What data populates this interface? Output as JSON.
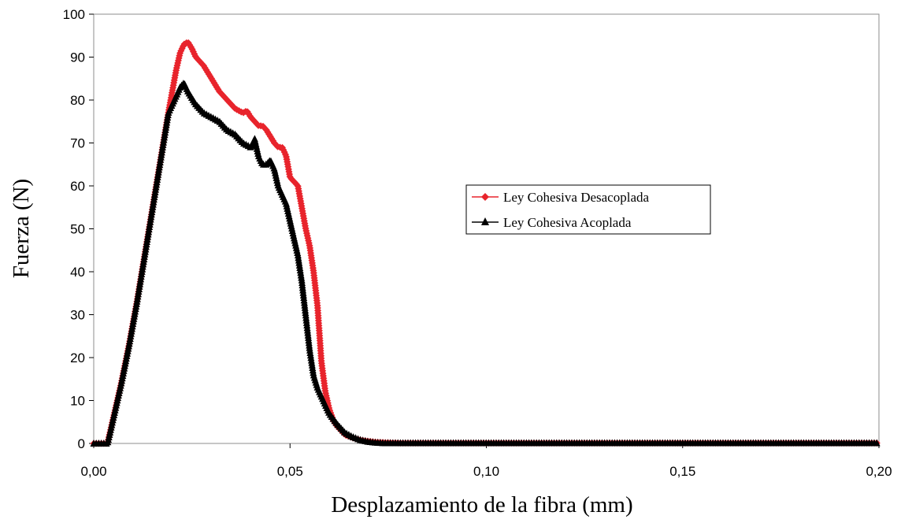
{
  "chart_data": {
    "type": "line",
    "xlabel": "Desplazamiento de la fibra (mm)",
    "ylabel": "Fuerza (N)",
    "xlim": [
      0,
      0.2
    ],
    "ylim": [
      0,
      100
    ],
    "x_ticks": [
      "0,00",
      "0,05",
      "0,10",
      "0,15",
      "0,20"
    ],
    "y_ticks": [
      "0",
      "10",
      "20",
      "30",
      "40",
      "50",
      "60",
      "70",
      "80",
      "90",
      "100"
    ],
    "grid": false,
    "legend_position": "right-center",
    "series": [
      {
        "name": "Ley Cohesiva Desacoplada",
        "color": "#e8242c",
        "marker": "diamond",
        "x": [
          0.0,
          0.002,
          0.0035,
          0.005,
          0.007,
          0.009,
          0.011,
          0.013,
          0.015,
          0.017,
          0.019,
          0.021,
          0.022,
          0.023,
          0.024,
          0.025,
          0.026,
          0.028,
          0.03,
          0.032,
          0.034,
          0.036,
          0.038,
          0.039,
          0.04,
          0.042,
          0.043,
          0.044,
          0.046,
          0.047,
          0.048,
          0.049,
          0.05,
          0.051,
          0.052,
          0.053,
          0.054,
          0.055,
          0.056,
          0.057,
          0.058,
          0.059,
          0.06,
          0.061,
          0.062,
          0.063,
          0.064,
          0.066,
          0.068,
          0.07,
          0.072,
          0.074,
          0.076,
          0.078,
          0.08,
          0.085,
          0.09,
          0.1,
          0.12,
          0.15,
          0.18,
          0.2
        ],
        "values": [
          0,
          0,
          0,
          6,
          14,
          23,
          33,
          44,
          55,
          66,
          77,
          87,
          91,
          93,
          93.5,
          92,
          90,
          88,
          85,
          82,
          80,
          78,
          77,
          77.5,
          76,
          74,
          74,
          73,
          70,
          69,
          69,
          67,
          62,
          61,
          60,
          55,
          50,
          46,
          40,
          32,
          19,
          12,
          8,
          5.5,
          4,
          3,
          2,
          1.3,
          0.8,
          0.5,
          0.3,
          0.2,
          0.15,
          0.1,
          0.1,
          0.1,
          0.1,
          0.1,
          0.1,
          0.1,
          0.1,
          0.1
        ]
      },
      {
        "name": "Ley Cohesiva Acoplada",
        "color": "#000000",
        "marker": "triangle",
        "x": [
          0.0,
          0.002,
          0.0035,
          0.005,
          0.007,
          0.009,
          0.011,
          0.013,
          0.015,
          0.017,
          0.019,
          0.021,
          0.022,
          0.023,
          0.024,
          0.026,
          0.028,
          0.03,
          0.032,
          0.034,
          0.036,
          0.038,
          0.04,
          0.041,
          0.042,
          0.043,
          0.044,
          0.045,
          0.046,
          0.047,
          0.048,
          0.049,
          0.05,
          0.051,
          0.052,
          0.053,
          0.054,
          0.055,
          0.056,
          0.057,
          0.058,
          0.06,
          0.062,
          0.064,
          0.066,
          0.068,
          0.07,
          0.072,
          0.074,
          0.076,
          0.078,
          0.08,
          0.09,
          0.1,
          0.12,
          0.15,
          0.18,
          0.2
        ],
        "values": [
          0,
          0,
          0,
          6,
          14,
          23,
          33,
          44,
          55,
          66,
          77,
          81,
          83,
          84,
          82,
          79,
          77,
          76,
          75,
          73,
          72,
          70,
          69,
          71,
          67,
          65,
          65,
          66,
          64,
          60,
          58,
          56,
          52,
          48,
          44,
          38,
          30,
          22,
          16,
          13,
          11,
          7,
          4.5,
          2.5,
          1.5,
          0.8,
          0.4,
          0.2,
          0.1,
          0.1,
          0.1,
          0.1,
          0.1,
          0.1,
          0.1,
          0.1,
          0.1,
          0.1
        ]
      }
    ]
  }
}
